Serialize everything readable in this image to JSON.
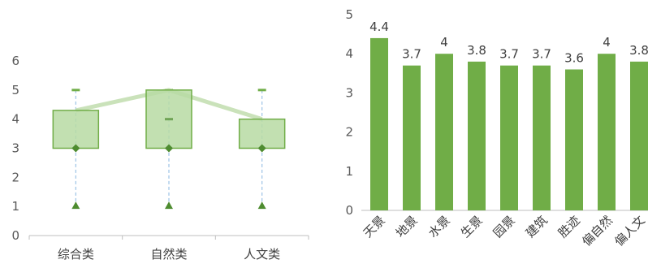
{
  "chart_data": [
    {
      "type": "box",
      "categories": [
        "综合类",
        "自然类",
        "人文类"
      ],
      "ylim": [
        0,
        6
      ],
      "yticks": [
        0,
        1,
        2,
        3,
        4,
        5,
        6
      ],
      "grid": false,
      "boxes": [
        {
          "min": 1,
          "q1": 3,
          "median": 3,
          "q3": 4.3,
          "max": 5,
          "mean": 4.3
        },
        {
          "min": 1,
          "q1": 3,
          "median": 3,
          "q3": 5,
          "max": 5,
          "mean": 5
        },
        {
          "min": 1,
          "q1": 3,
          "median": 3,
          "q3": 4,
          "max": 5,
          "mean": 4
        }
      ],
      "outliers": [
        {
          "category": "自然类",
          "value": 4
        }
      ],
      "colors": {
        "box_fill": "#b7dba3",
        "box_edge": "#70ad47",
        "marker": "#4e8c30",
        "mean_line": "#c4dfb3",
        "whisker": "#9dc3e6",
        "axis": "#bfbfbf"
      }
    },
    {
      "type": "bar",
      "categories": [
        "天景",
        "地景",
        "水景",
        "生景",
        "园景",
        "建筑",
        "胜迹",
        "偏自然",
        "偏人文"
      ],
      "values": [
        4.4,
        3.7,
        4,
        3.8,
        3.7,
        3.7,
        3.6,
        4,
        3.8
      ],
      "data_labels": [
        "4.4",
        "3.7",
        "4",
        "3.8",
        "3.7",
        "3.7",
        "3.6",
        "4",
        "3.8"
      ],
      "ylim": [
        0,
        5
      ],
      "yticks": [
        0,
        1,
        2,
        3,
        4,
        5
      ],
      "grid": false,
      "colors": {
        "bar": "#70ad47",
        "axis": "#bfbfbf"
      }
    }
  ]
}
